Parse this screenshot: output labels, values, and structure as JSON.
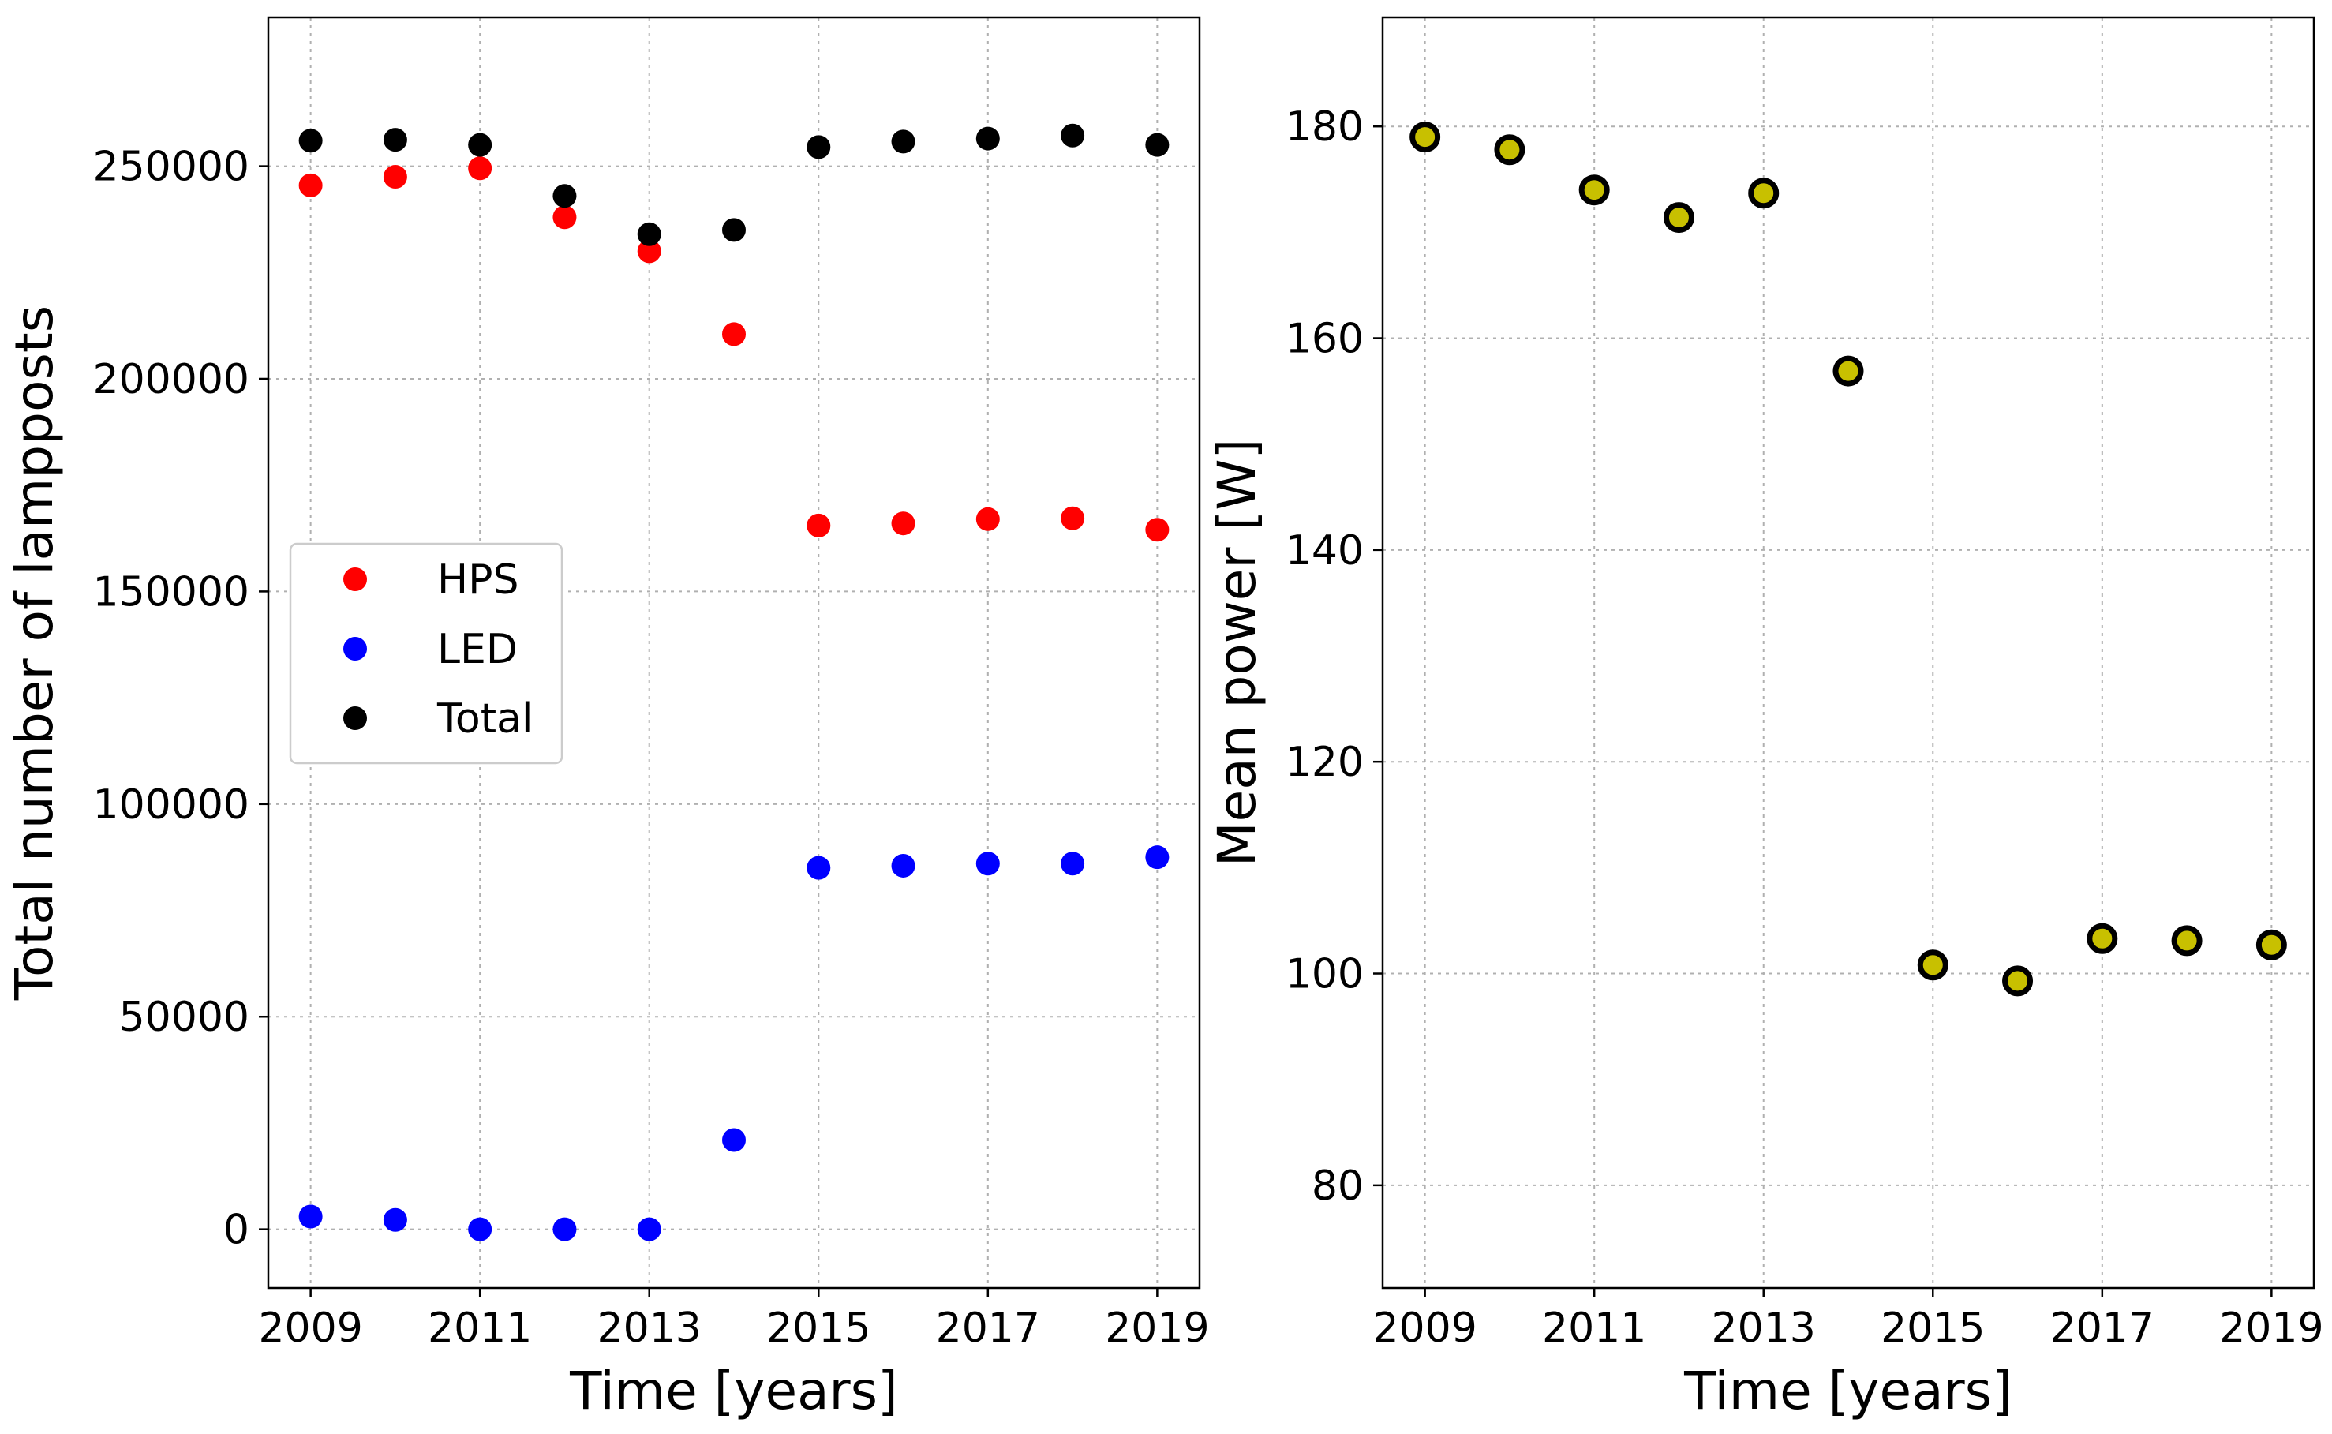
{
  "chart_data": [
    {
      "type": "scatter",
      "x": [
        2009,
        2010,
        2011,
        2012,
        2013,
        2014,
        2015,
        2016,
        2017,
        2018,
        2019
      ],
      "series": [
        {
          "name": "HPS",
          "color": "#ff0000",
          "values": [
            245500,
            247500,
            249500,
            238000,
            230000,
            210500,
            165500,
            166000,
            167000,
            167200,
            164500
          ]
        },
        {
          "name": "LED",
          "color": "#0000ff",
          "values": [
            3000,
            2200,
            0,
            0,
            0,
            21000,
            85000,
            85500,
            86000,
            86000,
            87500
          ]
        },
        {
          "name": "Total",
          "color": "#000000",
          "values": [
            256000,
            256200,
            255000,
            243000,
            234000,
            235000,
            254500,
            255800,
            256500,
            257200,
            255000
          ]
        }
      ],
      "xlabel": "Time [years]",
      "ylabel": "Total number of lampposts",
      "xlim": [
        2008.5,
        2019.5
      ],
      "ylim": [
        -13800,
        285000
      ],
      "xticks": [
        2009,
        2011,
        2013,
        2015,
        2017,
        2019
      ],
      "xtick_labels": [
        "2009",
        "2011",
        "2013",
        "2015",
        "2017",
        "2019"
      ],
      "yticks": [
        0,
        50000,
        100000,
        150000,
        200000,
        250000
      ],
      "ytick_labels": [
        "0",
        "50000",
        "100000",
        "150000",
        "200000",
        "250000"
      ],
      "legend": {
        "entries": [
          "HPS",
          "LED",
          "Total"
        ],
        "placement": "center-left"
      },
      "grid": true
    },
    {
      "type": "scatter",
      "x": [
        2009,
        2010,
        2011,
        2012,
        2013,
        2014,
        2015,
        2016,
        2017,
        2018,
        2019
      ],
      "series": [
        {
          "name": "Mean power",
          "color": "#c8c000",
          "edge_color": "#000000",
          "values": [
            179,
            177.8,
            174,
            171.4,
            173.7,
            156.9,
            100.8,
            99.3,
            103.3,
            103.1,
            102.7
          ]
        }
      ],
      "xlabel": "Time [years]",
      "ylabel": "Mean power [W]",
      "xlim": [
        2008.5,
        2019.5
      ],
      "ylim": [
        70.3,
        190.3
      ],
      "xticks": [
        2009,
        2011,
        2013,
        2015,
        2017,
        2019
      ],
      "xtick_labels": [
        "2009",
        "2011",
        "2013",
        "2015",
        "2017",
        "2019"
      ],
      "yticks": [
        80,
        100,
        120,
        140,
        160,
        180
      ],
      "ytick_labels": [
        "80",
        "100",
        "120",
        "140",
        "160",
        "180"
      ],
      "grid": true
    }
  ]
}
